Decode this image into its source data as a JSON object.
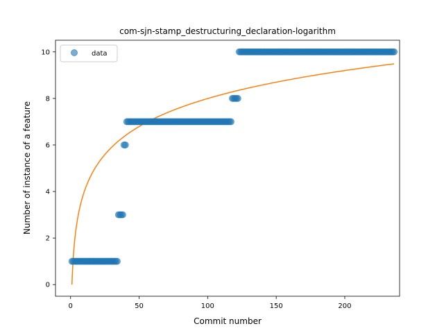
{
  "chart_data": {
    "type": "scatter",
    "title": "com-sjn-stamp_destructuring_declaration-logarithm",
    "xlabel": "Commit number",
    "ylabel": "Number of instance of a feature",
    "xlim": [
      -11,
      240
    ],
    "ylim": [
      -0.5,
      10.5
    ],
    "xticks": [
      0,
      50,
      100,
      150,
      200
    ],
    "yticks": [
      0,
      2,
      4,
      6,
      8,
      10
    ],
    "legend": {
      "placement": "top-left",
      "entries": [
        "data"
      ]
    },
    "grid": false,
    "colors": {
      "data": "#1f77b4",
      "fit": "#ff7f0e"
    },
    "series": [
      {
        "name": "data",
        "kind": "scatter",
        "runs": [
          {
            "x_start": 1,
            "x_end": 34,
            "y": 1
          },
          {
            "x_start": 35,
            "x_end": 38,
            "y": 3
          },
          {
            "x_start": 39,
            "x_end": 40,
            "y": 6
          },
          {
            "x_start": 41,
            "x_end": 117,
            "y": 7
          },
          {
            "x_start": 118,
            "x_end": 122,
            "y": 8
          },
          {
            "x_start": 123,
            "x_end": 236,
            "y": 10
          }
        ]
      },
      {
        "name": "",
        "kind": "line",
        "function": "logarithm",
        "coefficients": {
          "a": 1.736,
          "b": 0.0
        },
        "x_range": [
          1,
          236
        ]
      }
    ]
  }
}
